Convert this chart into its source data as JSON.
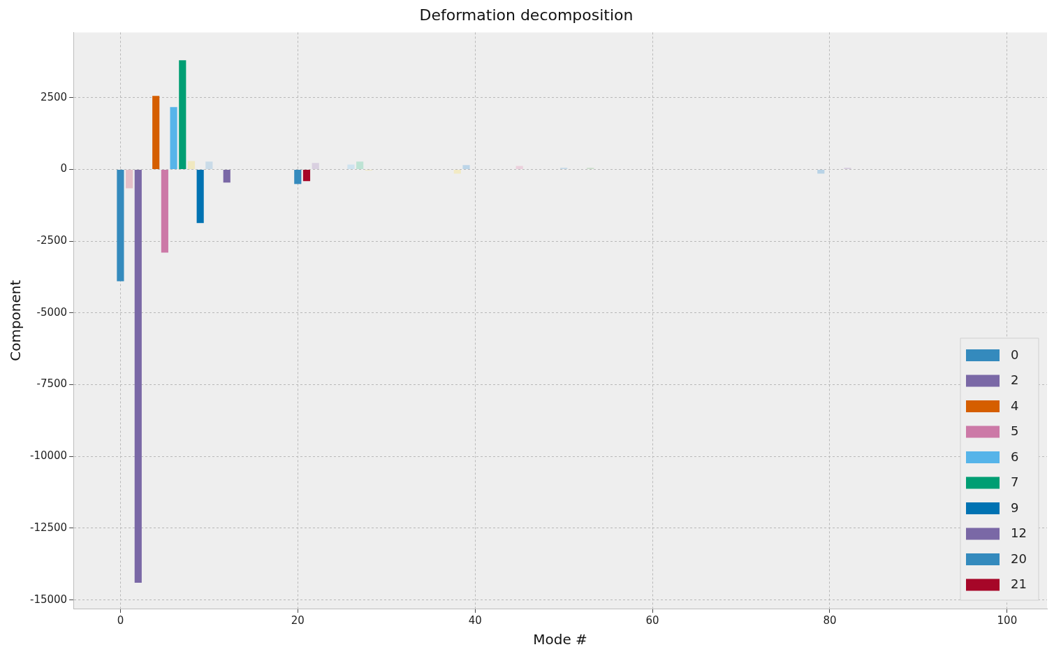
{
  "chart_data": {
    "type": "bar",
    "title": "Deformation decomposition",
    "xlabel": "Mode #",
    "ylabel": "Component",
    "xlim": [
      -5.3,
      104.5
    ],
    "xticks": [
      0,
      20,
      40,
      60,
      80,
      100
    ],
    "ylim": [
      -15300,
      4770
    ],
    "yticks": [
      -15000,
      -12500,
      -10000,
      -7500,
      -5000,
      -2500,
      0,
      2500
    ],
    "grid": true,
    "legend": "bottom right",
    "series": [
      {
        "name": "0",
        "color": "#348abd",
        "x": [
          0
        ],
        "values": [
          -3900
        ]
      },
      {
        "name": "2",
        "color": "#7a68a6",
        "x": [
          2
        ],
        "values": [
          -14400
        ]
      },
      {
        "name": "4",
        "color": "#d55e00",
        "x": [
          4
        ],
        "values": [
          2560
        ]
      },
      {
        "name": "5",
        "color": "#cc79a7",
        "x": [
          5
        ],
        "values": [
          -2900
        ]
      },
      {
        "name": "6",
        "color": "#56b4e9",
        "x": [
          6
        ],
        "values": [
          2170
        ]
      },
      {
        "name": "7",
        "color": "#009e73",
        "x": [
          7
        ],
        "values": [
          3800
        ]
      },
      {
        "name": "9",
        "color": "#0072b2",
        "x": [
          9
        ],
        "values": [
          -1870
        ]
      },
      {
        "name": "12",
        "color": "#7a68a6",
        "x": [
          12
        ],
        "values": [
          -460
        ]
      },
      {
        "name": "20",
        "color": "#348abd",
        "x": [
          20
        ],
        "values": [
          -510
        ]
      },
      {
        "name": "21",
        "color": "#a60628",
        "x": [
          21
        ],
        "values": [
          -410
        ]
      },
      {
        "x": [
          1,
          8,
          10,
          22,
          23,
          26,
          27,
          28,
          38,
          39,
          45,
          50,
          53,
          79,
          82
        ],
        "values": [
          -660,
          290,
          270,
          220,
          null,
          170,
          270,
          -40,
          -150,
          150,
          120,
          60,
          60,
          -150,
          60
        ],
        "colors": [
          "#e4bfc8",
          "#f0e8c0",
          "#c9dbe8",
          "#d9d0e0",
          "#cfe0cf",
          "#cfe3ef",
          "#bde3d4",
          "#f0e8c0",
          "#f2eac4",
          "#bcd5e8",
          "#ebd0dc",
          "#c9dbe8",
          "#cfe0cf",
          "#b8d3e6",
          "#d9d0e0"
        ]
      }
    ]
  }
}
